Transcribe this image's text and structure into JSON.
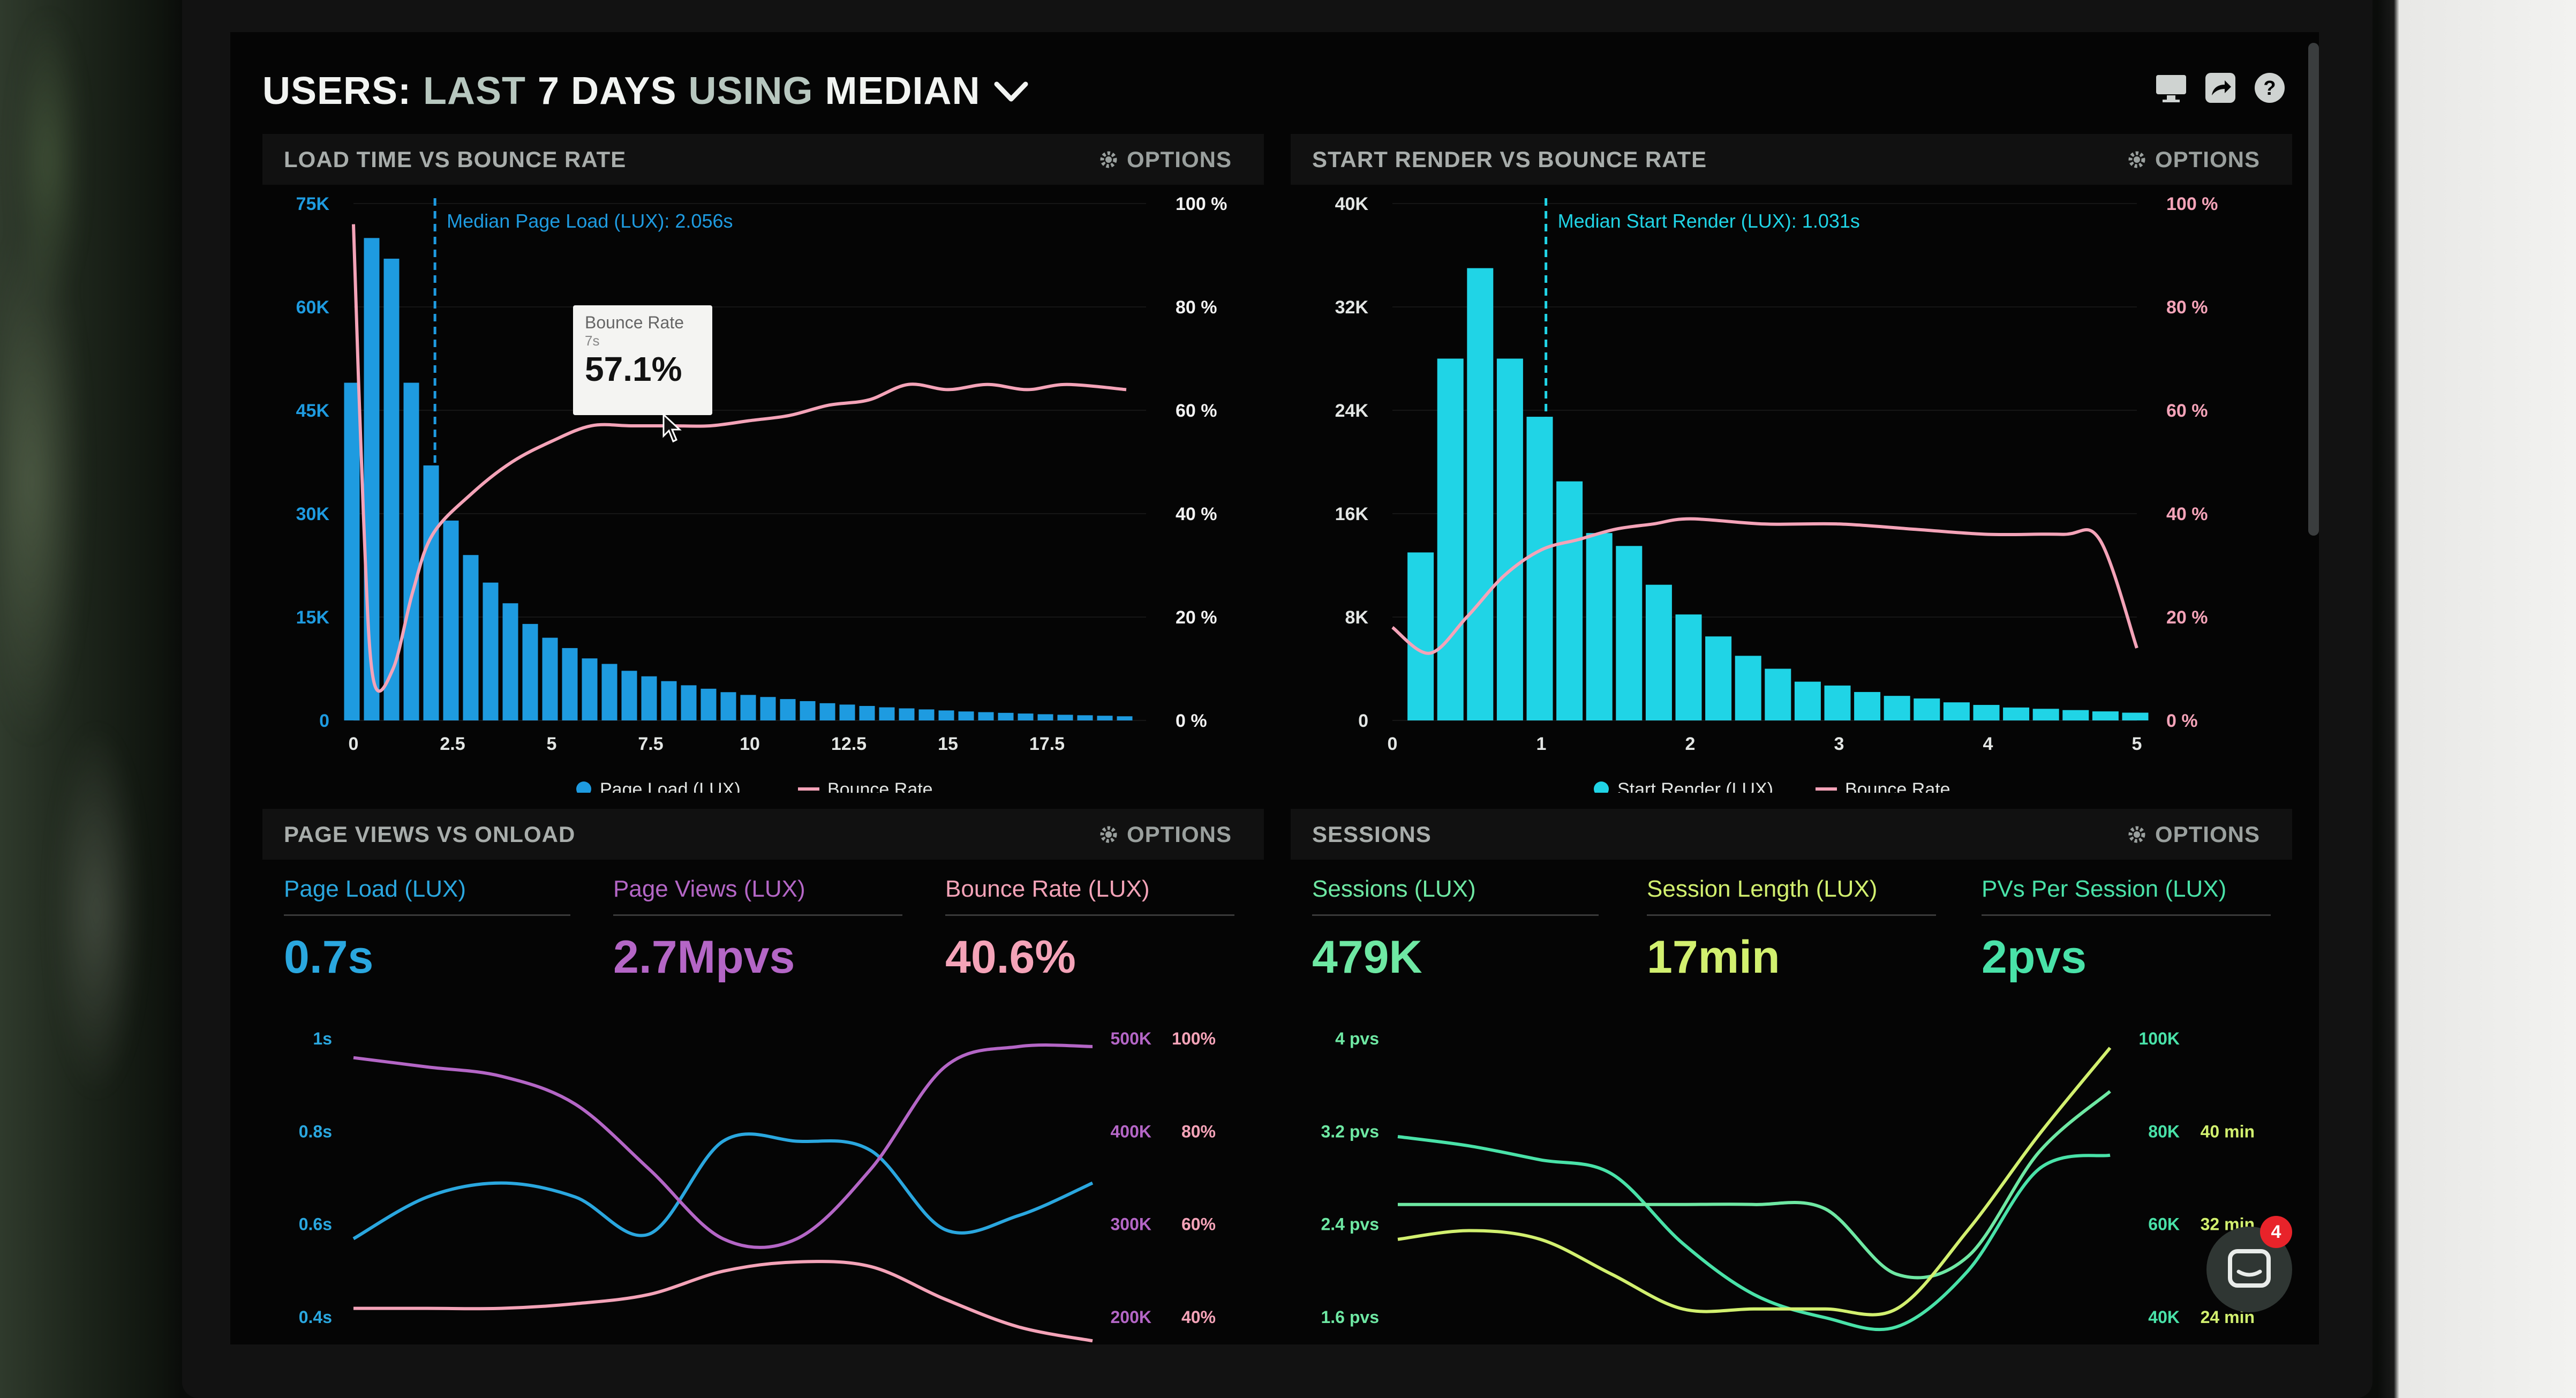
{
  "header": {
    "users": "USERS:",
    "last": "LAST",
    "days": "7 DAYS",
    "using": "USING",
    "median": "MEDIAN",
    "dropdown_icon": "chevron-down-icon",
    "icons": [
      "monitor-icon",
      "share-icon",
      "help-icon"
    ]
  },
  "colors": {
    "blue": "#1e9be0",
    "cyan": "#20d4e6",
    "pink": "#f4a3b8",
    "purple": "#b466c6",
    "lightblue": "#2aa7df",
    "green": "#6ee8a3",
    "lime": "#d2f06f",
    "teal": "#49e2a8"
  },
  "panels": {
    "load_vs_bounce": {
      "title": "LOAD TIME VS BOUNCE RATE",
      "options": "OPTIONS"
    },
    "render_vs_bounce": {
      "title": "START RENDER VS BOUNCE RATE",
      "options": "OPTIONS"
    },
    "views_vs_onload": {
      "title": "PAGE VIEWS VS ONLOAD",
      "options": "OPTIONS"
    },
    "sessions": {
      "title": "SESSIONS",
      "options": "OPTIONS"
    }
  },
  "tooltip": {
    "title": "Bounce Rate",
    "sub": "7s",
    "value": "57.1%"
  },
  "metrics": {
    "page_load": {
      "label": "Page Load (LUX)",
      "value": "0.7s"
    },
    "page_views": {
      "label": "Page Views (LUX)",
      "value": "2.7Mpvs"
    },
    "bounce_rate": {
      "label": "Bounce Rate (LUX)",
      "value": "40.6%"
    },
    "sessions": {
      "label": "Sessions (LUX)",
      "value": "479K"
    },
    "session_length": {
      "label": "Session Length (LUX)",
      "value": "17min"
    },
    "pvs_per_session": {
      "label": "PVs Per Session (LUX)",
      "value": "2pvs"
    }
  },
  "chat": {
    "badge": "4",
    "icon": "chat-icon"
  },
  "chart_data": [
    {
      "type": "bar",
      "annotation": "Median Page Load (LUX): 2.056s",
      "median_x": 2.056,
      "x_ticks": [
        "0",
        "2.5",
        "5",
        "7.5",
        "10",
        "12.5",
        "15",
        "17.5"
      ],
      "xlim": [
        0,
        20
      ],
      "y_left_ticks": [
        "0",
        "15K",
        "30K",
        "45K",
        "60K",
        "75K"
      ],
      "ylim_left": [
        0,
        75000
      ],
      "y_right_ticks": [
        "0 %",
        "20 %",
        "40 %",
        "60 %",
        "80 %",
        "100 %"
      ],
      "ylim_right": [
        0,
        100
      ],
      "legend": [
        "Page Load (LUX)",
        "Bounce Rate"
      ],
      "series": [
        {
          "name": "Page Load (LUX)",
          "x": [
            0,
            0.5,
            1,
            1.5,
            2,
            2.5,
            3,
            3.5,
            4,
            4.5,
            5,
            5.5,
            6,
            6.5,
            7,
            7.5,
            8,
            8.5,
            9,
            9.5,
            10,
            10.5,
            11,
            11.5,
            12,
            12.5,
            13,
            13.5,
            14,
            14.5,
            15,
            15.5,
            16,
            16.5,
            17,
            17.5,
            18,
            18.5,
            19,
            19.5
          ],
          "values": [
            49000,
            70000,
            67000,
            49000,
            37000,
            29000,
            24000,
            20000,
            17000,
            14000,
            12000,
            10500,
            9000,
            8200,
            7200,
            6400,
            5700,
            5100,
            4600,
            4100,
            3700,
            3400,
            3100,
            2800,
            2500,
            2300,
            2100,
            1900,
            1750,
            1600,
            1450,
            1300,
            1200,
            1100,
            1000,
            900,
            820,
            750,
            680,
            600
          ]
        },
        {
          "name": "Bounce Rate",
          "x": [
            0,
            0.25,
            0.5,
            1,
            1.5,
            2,
            3,
            4,
            5,
            6,
            7,
            8,
            9,
            10,
            11,
            12,
            13,
            14,
            15,
            16,
            17,
            18,
            19.5
          ],
          "values": [
            96,
            40,
            8,
            10,
            25,
            36,
            44,
            50,
            54,
            57,
            57,
            57,
            57,
            58,
            59,
            61,
            62,
            65,
            64,
            65,
            64,
            65,
            64
          ]
        }
      ]
    },
    {
      "type": "bar",
      "annotation": "Median Start Render (LUX): 1.031s",
      "median_x": 1.031,
      "x_ticks": [
        "0",
        "1",
        "2",
        "3",
        "4",
        "5"
      ],
      "xlim": [
        0,
        5
      ],
      "y_left_ticks": [
        "0",
        "8K",
        "16K",
        "24K",
        "32K",
        "40K"
      ],
      "ylim_left": [
        0,
        40000
      ],
      "y_right_ticks": [
        "0 %",
        "20 %",
        "40 %",
        "60 %",
        "80 %",
        "100 %"
      ],
      "ylim_right": [
        0,
        100
      ],
      "legend": [
        "Start Render (LUX)",
        "Bounce Rate"
      ],
      "series": [
        {
          "name": "Start Render (LUX)",
          "x": [
            0.2,
            0.4,
            0.6,
            0.8,
            1.0,
            1.2,
            1.4,
            1.6,
            1.8,
            2.0,
            2.2,
            2.4,
            2.6,
            2.8,
            3.0,
            3.2,
            3.4,
            3.6,
            3.8,
            4.0,
            4.2,
            4.4,
            4.6,
            4.8,
            5.0
          ],
          "values": [
            13000,
            28000,
            35000,
            28000,
            23500,
            18500,
            14500,
            13500,
            10500,
            8200,
            6500,
            5000,
            4000,
            3000,
            2700,
            2200,
            1900,
            1700,
            1400,
            1200,
            1000,
            900,
            800,
            700,
            600
          ]
        },
        {
          "name": "Bounce Rate",
          "x": [
            0,
            0.25,
            0.5,
            0.75,
            1,
            1.25,
            1.5,
            1.75,
            2,
            2.5,
            3,
            3.5,
            4,
            4.5,
            4.75,
            5
          ],
          "values": [
            18,
            13,
            20,
            28,
            33,
            35,
            37,
            38,
            39,
            38,
            38,
            37,
            36,
            36,
            35,
            14
          ]
        }
      ]
    },
    {
      "type": "line",
      "y_left_ticks": [
        "0.4s",
        "0.6s",
        "0.8s",
        "1s"
      ],
      "y_mid_ticks": [
        "200K",
        "300K",
        "400K",
        "500K"
      ],
      "y_right_ticks": [
        "40%",
        "60%",
        "80%",
        "100%"
      ],
      "series": [
        {
          "name": "Page Load (LUX)",
          "values": [
            0.57,
            0.66,
            0.69,
            0.66,
            0.58,
            0.78,
            0.78,
            0.76,
            0.59,
            0.62,
            0.69
          ]
        },
        {
          "name": "Page Views (LUX)",
          "values": [
            480000,
            470000,
            460000,
            430000,
            360000,
            285000,
            285000,
            360000,
            470000,
            492000,
            492000
          ]
        },
        {
          "name": "Bounce Rate (LUX)",
          "values": [
            42,
            42,
            42,
            43,
            45,
            50,
            52,
            51,
            44,
            38,
            35
          ]
        }
      ]
    },
    {
      "type": "line",
      "y_left_ticks": [
        "1.6 pvs",
        "2.4 pvs",
        "3.2 pvs",
        "4 pvs"
      ],
      "y_mid_ticks": [
        "40K",
        "60K",
        "80K",
        "100K"
      ],
      "y_right_ticks": [
        "24 min",
        "32 min",
        "40 min"
      ],
      "series": [
        {
          "name": "Sessions (LUX)",
          "values": [
            79000,
            77000,
            74000,
            71000,
            56000,
            45000,
            40000,
            38000,
            50000,
            72000,
            75000
          ]
        },
        {
          "name": "Session Length (LUX)",
          "values": [
            21,
            21,
            21,
            21,
            21,
            21,
            20.5,
            13,
            15,
            27,
            34
          ]
        },
        {
          "name": "PVs Per Session (LUX)",
          "values": [
            1.7,
            1.8,
            1.7,
            1.3,
            0.9,
            0.9,
            0.9,
            0.9,
            1.8,
            2.9,
            3.9
          ]
        }
      ]
    }
  ]
}
